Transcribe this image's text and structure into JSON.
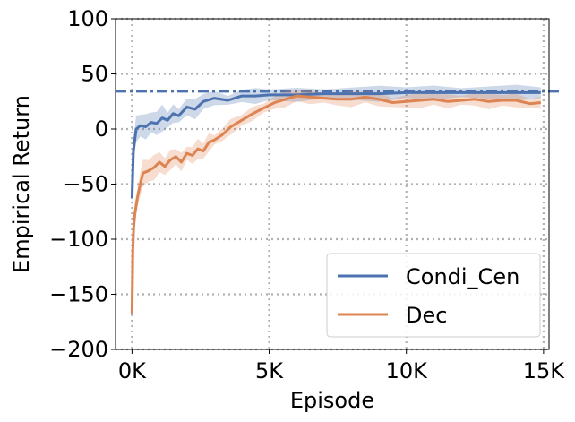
{
  "chart_data": {
    "type": "line",
    "xlabel": "Episode",
    "ylabel": "Empirical Return",
    "xlim": [
      -600,
      15200
    ],
    "ylim": [
      -200,
      100
    ],
    "x_ticks": [
      {
        "value": 0,
        "label": "0K"
      },
      {
        "value": 5000,
        "label": "5K"
      },
      {
        "value": 10000,
        "label": "10K"
      },
      {
        "value": 15000,
        "label": "15K"
      }
    ],
    "y_ticks": [
      {
        "value": 100,
        "label": "100"
      },
      {
        "value": 50,
        "label": "50"
      },
      {
        "value": 0,
        "label": "0"
      },
      {
        "value": -50,
        "label": "−50"
      },
      {
        "value": -100,
        "label": "−100"
      },
      {
        "value": -150,
        "label": "−150"
      },
      {
        "value": -200,
        "label": "−200"
      }
    ],
    "grid": true,
    "legend_position": "bottom-right",
    "reference_line": {
      "y": 34,
      "style": "dash-dot",
      "color": "#4c72b0"
    },
    "series": [
      {
        "name": "Condi_Cen",
        "color": "#4c72b0",
        "x": [
          0,
          50,
          150,
          300,
          500,
          700,
          900,
          1100,
          1300,
          1500,
          1700,
          2000,
          2300,
          2600,
          3000,
          3500,
          4000,
          4500,
          5000,
          6000,
          7000,
          8000,
          9000,
          10000,
          11000,
          12000,
          13000,
          14000,
          14900
        ],
        "y": [
          -63,
          -20,
          0,
          3,
          2,
          6,
          5,
          10,
          8,
          14,
          12,
          20,
          18,
          25,
          28,
          26,
          30,
          30,
          31,
          31,
          32,
          32,
          32,
          33,
          33,
          33,
          33,
          33,
          33
        ]
      },
      {
        "name": "Dec",
        "color": "#dd8452",
        "x": [
          0,
          30,
          60,
          100,
          200,
          300,
          400,
          600,
          800,
          1000,
          1200,
          1400,
          1600,
          1800,
          2000,
          2200,
          2400,
          2600,
          2800,
          3000,
          3300,
          3600,
          4000,
          4400,
          4800,
          5200,
          5600,
          6000,
          6500,
          7000,
          7500,
          8000,
          8500,
          9000,
          9500,
          10000,
          10500,
          11000,
          11500,
          12000,
          12500,
          13000,
          13500,
          14000,
          14500,
          14900
        ],
        "y": [
          -168,
          -110,
          -90,
          -78,
          -62,
          -50,
          -40,
          -38,
          -35,
          -30,
          -34,
          -28,
          -25,
          -30,
          -22,
          -24,
          -18,
          -20,
          -12,
          -10,
          -5,
          2,
          8,
          14,
          19,
          24,
          27,
          30,
          29,
          28,
          27,
          27,
          29,
          27,
          24,
          25,
          26,
          27,
          25,
          26,
          27,
          25,
          26,
          26,
          23,
          24
        ]
      }
    ]
  }
}
